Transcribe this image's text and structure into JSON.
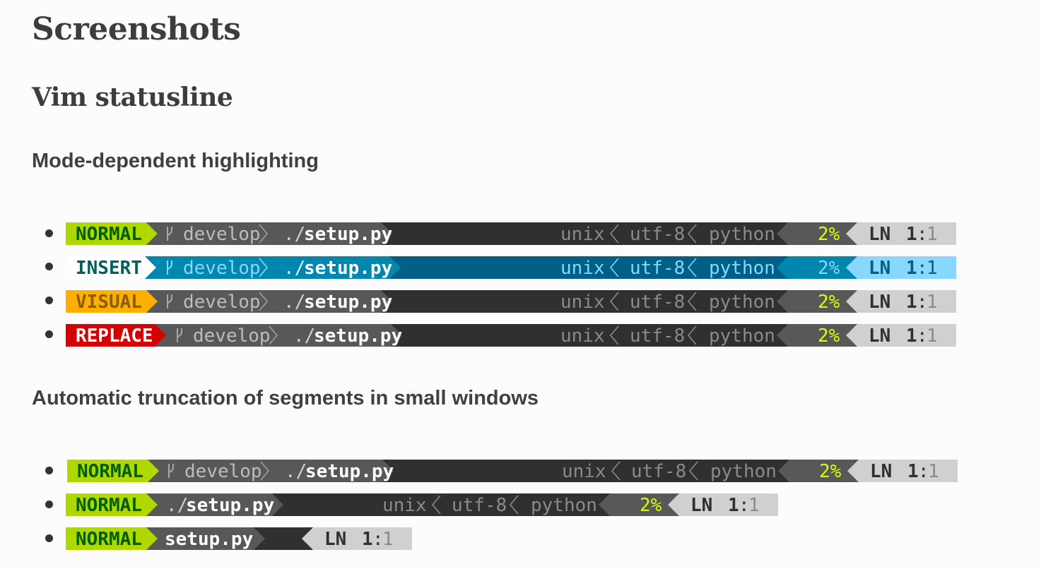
{
  "headings": {
    "title": "Screenshots",
    "section": "Vim statusline",
    "mode_heading": "Mode-dependent highlighting",
    "trunc_heading": "Automatic truncation of segments in small windows"
  },
  "statuslines": {
    "normal": {
      "mode": "NORMAL",
      "branch": "develop",
      "path_prefix": "./",
      "filename": "setup.py",
      "fileformat": "unix",
      "encoding": "utf-8",
      "filetype": "python",
      "percent": "2%",
      "line_icon": "LN",
      "line": "1",
      "sep": ":",
      "col": "1"
    },
    "insert": {
      "mode": "INSERT",
      "branch": "develop",
      "path_prefix": "./",
      "filename": "setup.py",
      "fileformat": "unix",
      "encoding": "utf-8",
      "filetype": "python",
      "percent": "2%",
      "line_icon": "LN",
      "line": "1",
      "sep": ":",
      "col": "1"
    },
    "visual": {
      "mode": "VISUAL",
      "branch": "develop",
      "path_prefix": "./",
      "filename": "setup.py",
      "fileformat": "unix",
      "encoding": "utf-8",
      "filetype": "python",
      "percent": "2%",
      "line_icon": "LN",
      "line": "1",
      "sep": ":",
      "col": "1"
    },
    "replace": {
      "mode": "REPLACE",
      "branch": "develop",
      "path_prefix": "./",
      "filename": "setup.py",
      "fileformat": "unix",
      "encoding": "utf-8",
      "filetype": "python",
      "percent": "2%",
      "line_icon": "LN",
      "line": "1",
      "sep": ":",
      "col": "1"
    },
    "trunc_full": {
      "mode": "NORMAL",
      "branch": "develop",
      "path_prefix": "./",
      "filename": "setup.py",
      "fileformat": "unix",
      "encoding": "utf-8",
      "filetype": "python",
      "percent": "2%",
      "line_icon": "LN",
      "line": "1",
      "sep": ":",
      "col": "1"
    },
    "trunc_medium": {
      "mode": "NORMAL",
      "path_prefix": "./",
      "filename": "setup.py",
      "fileformat": "unix",
      "encoding": "utf-8",
      "filetype": "python",
      "percent": "2%",
      "line_icon": "LN",
      "line": "1",
      "sep": ":",
      "col": "1"
    },
    "trunc_small": {
      "mode": "NORMAL",
      "filename": "setup.py",
      "line_icon": "LN",
      "line": "1",
      "sep": ":",
      "col": "1"
    }
  },
  "colors": {
    "normal_mode_bg": "#afd700",
    "normal_mode_fg": "#005f00",
    "insert_mode_bg": "#ffffff",
    "insert_mode_fg": "#005f5f",
    "visual_mode_bg": "#ffaf00",
    "visual_mode_fg": "#875f00",
    "replace_mode_bg": "#d70000",
    "replace_mode_fg": "#ffffff",
    "dark_segment": "#585858",
    "darker_segment": "#303030",
    "light_segment": "#d0d0d0",
    "insert_segment": "#0087af",
    "insert_darker": "#005f87",
    "insert_light": "#87d7ff",
    "percent_fg": "#d7ff00"
  }
}
